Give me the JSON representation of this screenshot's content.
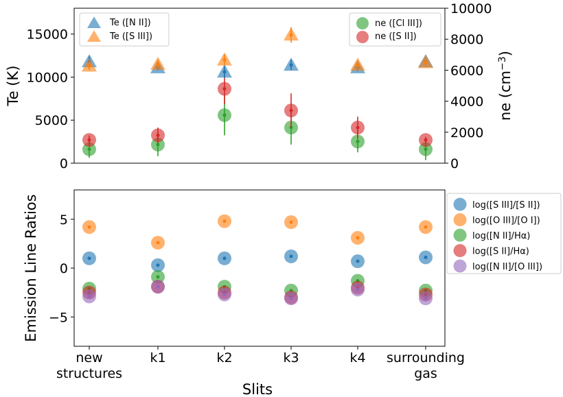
{
  "chart_data": [
    {
      "type": "scatter",
      "panel": "top",
      "categories": [
        "new structures",
        "k1",
        "k2",
        "k3",
        "k4",
        "surrounding gas"
      ],
      "ylabel": "Te (K)",
      "y2label": "ne (cm$^{-3}$)",
      "y2label_text": "ne (cm",
      "y2label_sup": "−3",
      "y2label_close": ")",
      "ylim": [
        0,
        18000
      ],
      "y2lim": [
        0,
        10000
      ],
      "yticks": [
        0,
        5000,
        10000,
        15000
      ],
      "y2ticks": [
        0,
        2000,
        4000,
        6000,
        8000,
        10000
      ],
      "series": [
        {
          "name": "Te ([N II])",
          "axis": "left",
          "marker": "triangle",
          "color": "#1f77b4",
          "values": [
            11800,
            11100,
            10600,
            11400,
            11100,
            11800
          ],
          "errors": [
            600,
            300,
            700,
            600,
            400,
            500
          ]
        },
        {
          "name": "Te ([S III])",
          "axis": "left",
          "marker": "triangle",
          "color": "#ff7f0e",
          "values": [
            11300,
            11500,
            12000,
            14900,
            11400,
            11700
          ],
          "errors": [
            500,
            500,
            600,
            900,
            500,
            500
          ]
        },
        {
          "name": "ne ([Cl III])",
          "axis": "right",
          "marker": "circle",
          "color": "#2ca02c",
          "values": [
            900,
            1200,
            3100,
            2300,
            1400,
            900
          ],
          "errors": [
            550,
            750,
            1300,
            1100,
            700,
            700
          ]
        },
        {
          "name": "ne ([S II])",
          "axis": "right",
          "marker": "circle",
          "color": "#d62728",
          "values": [
            1500,
            1800,
            4800,
            3400,
            2300,
            1500
          ],
          "errors": [
            300,
            500,
            1000,
            1100,
            700,
            200
          ]
        }
      ],
      "legend_left": "top-left",
      "legend_right": "top-right"
    },
    {
      "type": "scatter",
      "panel": "bottom",
      "categories": [
        "new structures",
        "k1",
        "k2",
        "k3",
        "k4",
        "surrounding gas"
      ],
      "xlabel": "Slits",
      "ylabel": "Emission Line Ratios",
      "ylim": [
        -8,
        8
      ],
      "yticks": [
        -5,
        0,
        5
      ],
      "xtick_lines": [
        [
          "new",
          "structures"
        ],
        [
          "k1"
        ],
        [
          "k2"
        ],
        [
          "k3"
        ],
        [
          "k4"
        ],
        [
          "surrounding",
          "gas"
        ]
      ],
      "series": [
        {
          "name": "log([S III]/[S II])",
          "color": "#1f77b4",
          "values": [
            1.0,
            0.3,
            1.0,
            1.2,
            0.7,
            1.1
          ]
        },
        {
          "name": "log([O III]/[O I])",
          "color": "#ff7f0e",
          "values": [
            4.2,
            2.6,
            4.8,
            4.7,
            3.1,
            4.2
          ]
        },
        {
          "name": "log([N II]/Hα)",
          "color": "#2ca02c",
          "values": [
            -2.1,
            -0.9,
            -1.9,
            -2.3,
            -1.3,
            -2.3
          ]
        },
        {
          "name": "log([S II]/Hα)",
          "color": "#d62728",
          "values": [
            -2.5,
            -1.9,
            -2.5,
            -3.0,
            -2.0,
            -2.7
          ]
        },
        {
          "name": "log([N II]/[O III])",
          "color": "#9467bd",
          "values": [
            -2.9,
            -1.9,
            -2.7,
            -3.1,
            -2.2,
            -3.1
          ]
        }
      ],
      "legend": "outside-right"
    }
  ]
}
